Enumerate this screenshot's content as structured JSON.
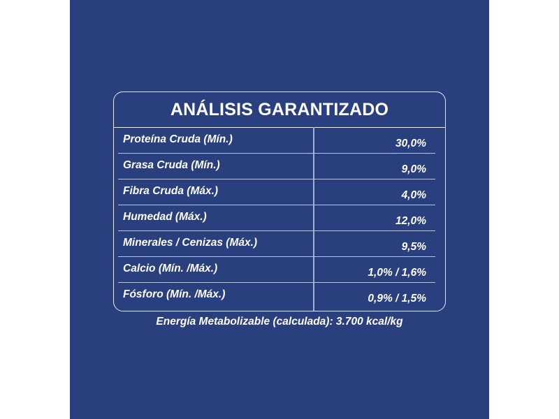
{
  "colors": {
    "panel_background": "#2a3f7e",
    "text": "#ffffff",
    "border": "#e6ebf5"
  },
  "table": {
    "title": "ANÁLISIS GARANTIZADO",
    "rows": [
      {
        "label": "Proteína Cruda (Mín.)",
        "value": "30,0%"
      },
      {
        "label": "Grasa Cruda (Mín.)",
        "value": "9,0%"
      },
      {
        "label": "Fibra Cruda (Máx.)",
        "value": "4,0%"
      },
      {
        "label": "Humedad (Máx.)",
        "value": "12,0%"
      },
      {
        "label": "Minerales / Cenizas (Máx.)",
        "value": "9,5%"
      },
      {
        "label": "Calcio (Mín. /Máx.)",
        "value": "1,0% / 1,6%"
      },
      {
        "label": "Fósforo (Mín. /Máx.)",
        "value": "0,9% / 1,5%"
      }
    ]
  },
  "footnote": "Energía Metabolizable (calculada): 3.700 kcal/kg"
}
